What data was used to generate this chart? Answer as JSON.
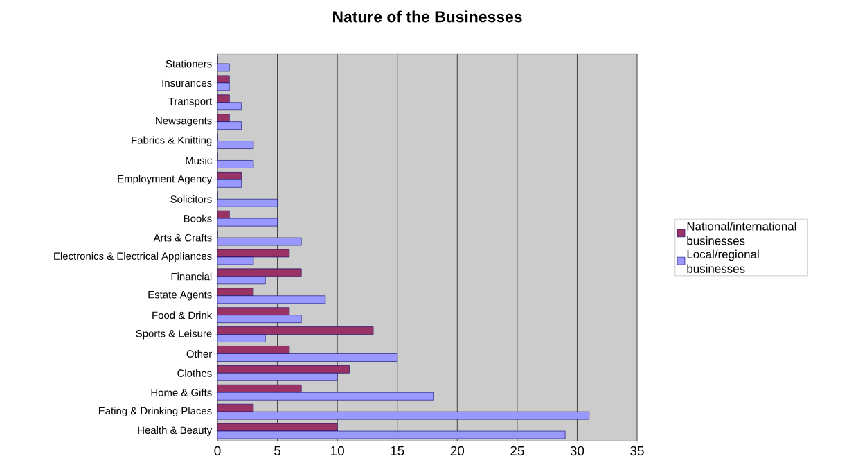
{
  "chart_data": {
    "type": "bar",
    "orientation": "horizontal",
    "title": "Nature of the Businesses",
    "categories": [
      "Stationers",
      "Insurances",
      "Transport",
      "Newsagents",
      "Fabrics & Knitting",
      "Music",
      "Employment Agency",
      "Solicitors",
      "Books",
      "Arts & Crafts",
      "Electronics & Electrical Appliances",
      "Financial",
      "Estate Agents",
      "Food & Drink",
      "Sports & Leisure",
      "Other",
      "Clothes",
      "Home & Gifts",
      "Eating & Drinking Places",
      "Health & Beauty"
    ],
    "series": [
      {
        "name": "National/international businesses",
        "color": "#993366",
        "values": [
          0,
          1,
          1,
          1,
          0,
          0,
          2,
          0,
          1,
          0,
          6,
          7,
          3,
          6,
          13,
          6,
          11,
          7,
          3,
          10
        ]
      },
      {
        "name": "Local/regional businesses",
        "color": "#9999ff",
        "values": [
          1,
          1,
          2,
          2,
          3,
          3,
          2,
          5,
          5,
          7,
          3,
          4,
          9,
          7,
          4,
          15,
          10,
          18,
          31,
          29
        ]
      }
    ],
    "xlim": [
      0,
      35
    ],
    "xticks": [
      0,
      5,
      10,
      15,
      20,
      25,
      30,
      35
    ],
    "grid": "x",
    "legend": "right"
  }
}
